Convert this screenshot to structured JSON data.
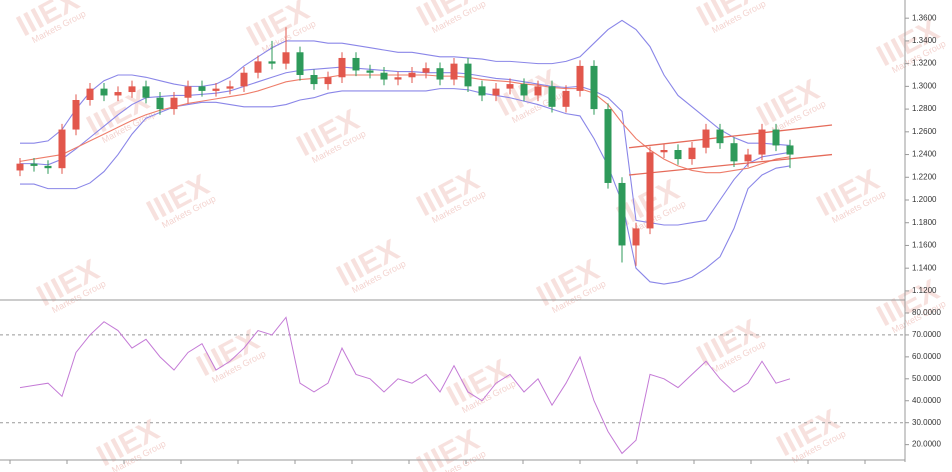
{
  "chart_data": [
    {
      "type": "candlestick",
      "ylim": [
        1.112,
        1.376
      ],
      "yticks": [
        {
          "value": 1.12,
          "label": "1.1200"
        },
        {
          "value": 1.14,
          "label": "1.1400"
        },
        {
          "value": 1.16,
          "label": "1.1600"
        },
        {
          "value": 1.18,
          "label": "1.1800"
        },
        {
          "value": 1.2,
          "label": "1.2000"
        },
        {
          "value": 1.22,
          "label": "1.2200"
        },
        {
          "value": 1.24,
          "label": "1.2400"
        },
        {
          "value": 1.26,
          "label": "1.2600"
        },
        {
          "value": 1.28,
          "label": "1.2800"
        },
        {
          "value": 1.3,
          "label": "1.3000"
        },
        {
          "value": 1.32,
          "label": "1.3200"
        },
        {
          "value": 1.34,
          "label": "1.3400"
        },
        {
          "value": 1.36,
          "label": "1.3600"
        }
      ],
      "up_color": "#e2574c",
      "down_color": "#2e9a5a",
      "ohlc": [
        [
          1.226,
          1.237,
          1.221,
          1.232
        ],
        [
          1.232,
          1.237,
          1.225,
          1.23
        ],
        [
          1.23,
          1.235,
          1.223,
          1.228
        ],
        [
          1.228,
          1.267,
          1.223,
          1.262
        ],
        [
          1.262,
          1.293,
          1.257,
          1.288
        ],
        [
          1.288,
          1.303,
          1.283,
          1.298
        ],
        [
          1.298,
          1.303,
          1.287,
          1.292
        ],
        [
          1.292,
          1.3,
          1.287,
          1.295
        ],
        [
          1.295,
          1.305,
          1.29,
          1.3
        ],
        [
          1.3,
          1.305,
          1.285,
          1.29
        ],
        [
          1.29,
          1.295,
          1.275,
          1.28
        ],
        [
          1.28,
          1.295,
          1.275,
          1.29
        ],
        [
          1.29,
          1.305,
          1.285,
          1.3
        ],
        [
          1.3,
          1.305,
          1.291,
          1.296
        ],
        [
          1.296,
          1.303,
          1.291,
          1.298
        ],
        [
          1.298,
          1.305,
          1.293,
          1.3
        ],
        [
          1.3,
          1.317,
          1.295,
          1.312
        ],
        [
          1.312,
          1.327,
          1.307,
          1.322
        ],
        [
          1.322,
          1.34,
          1.315,
          1.32
        ],
        [
          1.32,
          1.352,
          1.315,
          1.33
        ],
        [
          1.33,
          1.335,
          1.305,
          1.31
        ],
        [
          1.31,
          1.315,
          1.297,
          1.302
        ],
        [
          1.302,
          1.313,
          1.297,
          1.308
        ],
        [
          1.308,
          1.33,
          1.303,
          1.325
        ],
        [
          1.325,
          1.33,
          1.309,
          1.314
        ],
        [
          1.314,
          1.319,
          1.307,
          1.312
        ],
        [
          1.312,
          1.317,
          1.301,
          1.306
        ],
        [
          1.306,
          1.313,
          1.301,
          1.308
        ],
        [
          1.308,
          1.317,
          1.303,
          1.312
        ],
        [
          1.312,
          1.321,
          1.307,
          1.316
        ],
        [
          1.316,
          1.321,
          1.301,
          1.306
        ],
        [
          1.306,
          1.325,
          1.301,
          1.32
        ],
        [
          1.32,
          1.325,
          1.295,
          1.3
        ],
        [
          1.3,
          1.305,
          1.287,
          1.292
        ],
        [
          1.292,
          1.303,
          1.287,
          1.298
        ],
        [
          1.298,
          1.307,
          1.293,
          1.302
        ],
        [
          1.302,
          1.307,
          1.287,
          1.292
        ],
        [
          1.292,
          1.305,
          1.287,
          1.3
        ],
        [
          1.3,
          1.305,
          1.277,
          1.282
        ],
        [
          1.282,
          1.301,
          1.277,
          1.296
        ],
        [
          1.296,
          1.323,
          1.291,
          1.318
        ],
        [
          1.318,
          1.323,
          1.275,
          1.28
        ],
        [
          1.28,
          1.285,
          1.21,
          1.215
        ],
        [
          1.215,
          1.22,
          1.145,
          1.16
        ],
        [
          1.16,
          1.18,
          1.142,
          1.175
        ],
        [
          1.175,
          1.247,
          1.17,
          1.242
        ],
        [
          1.242,
          1.249,
          1.237,
          1.244
        ],
        [
          1.244,
          1.249,
          1.231,
          1.236
        ],
        [
          1.236,
          1.251,
          1.231,
          1.246
        ],
        [
          1.246,
          1.267,
          1.241,
          1.262
        ],
        [
          1.262,
          1.267,
          1.245,
          1.25
        ],
        [
          1.25,
          1.255,
          1.229,
          1.234
        ],
        [
          1.234,
          1.245,
          1.229,
          1.24
        ],
        [
          1.24,
          1.267,
          1.235,
          1.262
        ],
        [
          1.262,
          1.267,
          1.243,
          1.248
        ],
        [
          1.248,
          1.253,
          1.228,
          1.24
        ]
      ],
      "lines": [
        {
          "color": "#8a86e8",
          "values": [
            1.25,
            1.25,
            1.252,
            1.262,
            1.28,
            1.295,
            1.305,
            1.31,
            1.31,
            1.308,
            1.305,
            1.302,
            1.3,
            1.3,
            1.302,
            1.308,
            1.318,
            1.326,
            1.334,
            1.34,
            1.34,
            1.34,
            1.338,
            1.338,
            1.336,
            1.334,
            1.332,
            1.33,
            1.33,
            1.328,
            1.326,
            1.326,
            1.325,
            1.324,
            1.322,
            1.322,
            1.321,
            1.32,
            1.32,
            1.322,
            1.326,
            1.338,
            1.35,
            1.358,
            1.35,
            1.335,
            1.31,
            1.292,
            1.282,
            1.272,
            1.262,
            1.255,
            1.25,
            1.25,
            1.249,
            1.248
          ]
        },
        {
          "color": "#8a86e8",
          "values": [
            1.232,
            1.232,
            1.231,
            1.236,
            1.245,
            1.255,
            1.265,
            1.275,
            1.284,
            1.29,
            1.291,
            1.292,
            1.292,
            1.293,
            1.294,
            1.296,
            1.3,
            1.304,
            1.308,
            1.312,
            1.314,
            1.315,
            1.316,
            1.317,
            1.316,
            1.315,
            1.314,
            1.313,
            1.313,
            1.312,
            1.312,
            1.312,
            1.311,
            1.309,
            1.307,
            1.306,
            1.304,
            1.302,
            1.3,
            1.299,
            1.3,
            1.296,
            1.29,
            1.278,
            1.182,
            1.18,
            1.178,
            1.178,
            1.18,
            1.182,
            1.2,
            1.218,
            1.232,
            1.238,
            1.24,
            1.242
          ]
        },
        {
          "color": "#8a86e8",
          "values": [
            1.214,
            1.214,
            1.21,
            1.21,
            1.21,
            1.215,
            1.225,
            1.24,
            1.258,
            1.272,
            1.277,
            1.282,
            1.284,
            1.286,
            1.286,
            1.284,
            1.282,
            1.282,
            1.282,
            1.284,
            1.288,
            1.29,
            1.294,
            1.296,
            1.296,
            1.296,
            1.296,
            1.296,
            1.296,
            1.296,
            1.298,
            1.298,
            1.297,
            1.294,
            1.292,
            1.29,
            1.287,
            1.284,
            1.28,
            1.276,
            1.274,
            1.254,
            1.23,
            1.198,
            1.14,
            1.128,
            1.126,
            1.128,
            1.132,
            1.14,
            1.15,
            1.175,
            1.21,
            1.222,
            1.228,
            1.23
          ]
        },
        {
          "color": "#ee7d6a",
          "values": [
            1.234,
            1.236,
            1.238,
            1.24,
            1.246,
            1.252,
            1.258,
            1.264,
            1.27,
            1.275,
            1.279,
            1.282,
            1.285,
            1.287,
            1.289,
            1.291,
            1.293,
            1.296,
            1.3,
            1.304,
            1.306,
            1.307,
            1.308,
            1.31,
            1.31,
            1.31,
            1.31,
            1.31,
            1.31,
            1.31,
            1.309,
            1.309,
            1.308,
            1.306,
            1.305,
            1.304,
            1.302,
            1.301,
            1.299,
            1.298,
            1.298,
            1.294,
            1.284,
            1.268,
            1.254,
            1.244,
            1.236,
            1.23,
            1.226,
            1.224,
            1.224,
            1.226,
            1.228,
            1.232,
            1.236,
            1.238
          ]
        }
      ],
      "trendlines": [
        {
          "color": "#e56b5a",
          "x": [
            43.5,
            58
          ],
          "values": [
            1.246,
            1.266
          ]
        },
        {
          "color": "#e56b5a",
          "x": [
            43.5,
            58
          ],
          "values": [
            1.222,
            1.24
          ]
        }
      ]
    },
    {
      "type": "line",
      "ylim": [
        13,
        85
      ],
      "yticks": [
        {
          "value": 20,
          "label": "20.0000"
        },
        {
          "value": 30,
          "label": "30.0000"
        },
        {
          "value": 40,
          "label": "40.0000"
        },
        {
          "value": 50,
          "label": "50.0000"
        },
        {
          "value": 60,
          "label": "60.0000"
        },
        {
          "value": 70,
          "label": "70.0000"
        },
        {
          "value": 80,
          "label": "80.0000"
        }
      ],
      "levels": [
        70,
        30
      ],
      "color": "#c47ad6",
      "values": [
        46,
        47,
        48,
        42,
        62,
        70,
        76,
        72,
        64,
        68,
        60,
        54,
        62,
        66,
        54,
        58,
        64,
        72,
        70,
        78,
        48,
        44,
        48,
        64,
        52,
        50,
        44,
        50,
        48,
        52,
        44,
        56,
        44,
        40,
        48,
        52,
        44,
        50,
        38,
        48,
        60,
        40,
        26,
        16,
        22,
        52,
        50,
        46,
        52,
        58,
        50,
        44,
        48,
        58,
        48,
        50
      ]
    }
  ],
  "watermark": {
    "logo": "IIIEX",
    "text": "Markets Group"
  }
}
